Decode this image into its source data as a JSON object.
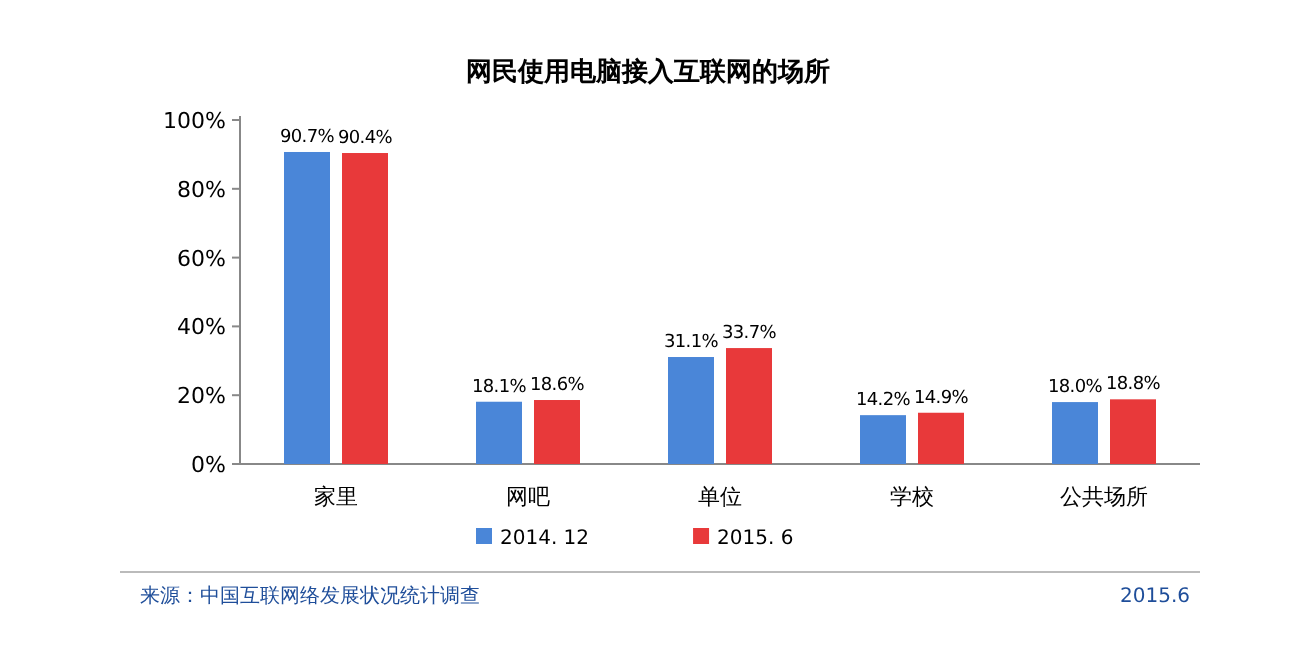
{
  "chart_data": {
    "type": "bar",
    "title": "网民使用电脑接入互联网的场所",
    "categories": [
      "家里",
      "网吧",
      "单位",
      "学校",
      "公共场所"
    ],
    "series": [
      {
        "name": "2014. 12",
        "color": "#4a86d8",
        "values": [
          90.7,
          18.1,
          31.1,
          14.2,
          18.0
        ],
        "value_labels": [
          "90.7%",
          "18.1%",
          "31.1%",
          "14.2%",
          "18.0%"
        ]
      },
      {
        "name": "2015. 6",
        "color": "#e8393a",
        "values": [
          90.4,
          18.6,
          33.7,
          14.9,
          18.8
        ],
        "value_labels": [
          "90.4%",
          "18.6%",
          "33.7%",
          "14.9%",
          "18.8%"
        ]
      }
    ],
    "ylim": [
      0,
      100
    ],
    "yticks": [
      {
        "value": 0,
        "label": "0%"
      },
      {
        "value": 20,
        "label": "20%"
      },
      {
        "value": 40,
        "label": "40%"
      },
      {
        "value": 60,
        "label": "60%"
      },
      {
        "value": 80,
        "label": "80%"
      },
      {
        "value": 100,
        "label": "100%"
      }
    ],
    "legend": "bottom",
    "annotations": [
      "来源：中国互联网络发展状况统计调查",
      "2015.6"
    ]
  }
}
